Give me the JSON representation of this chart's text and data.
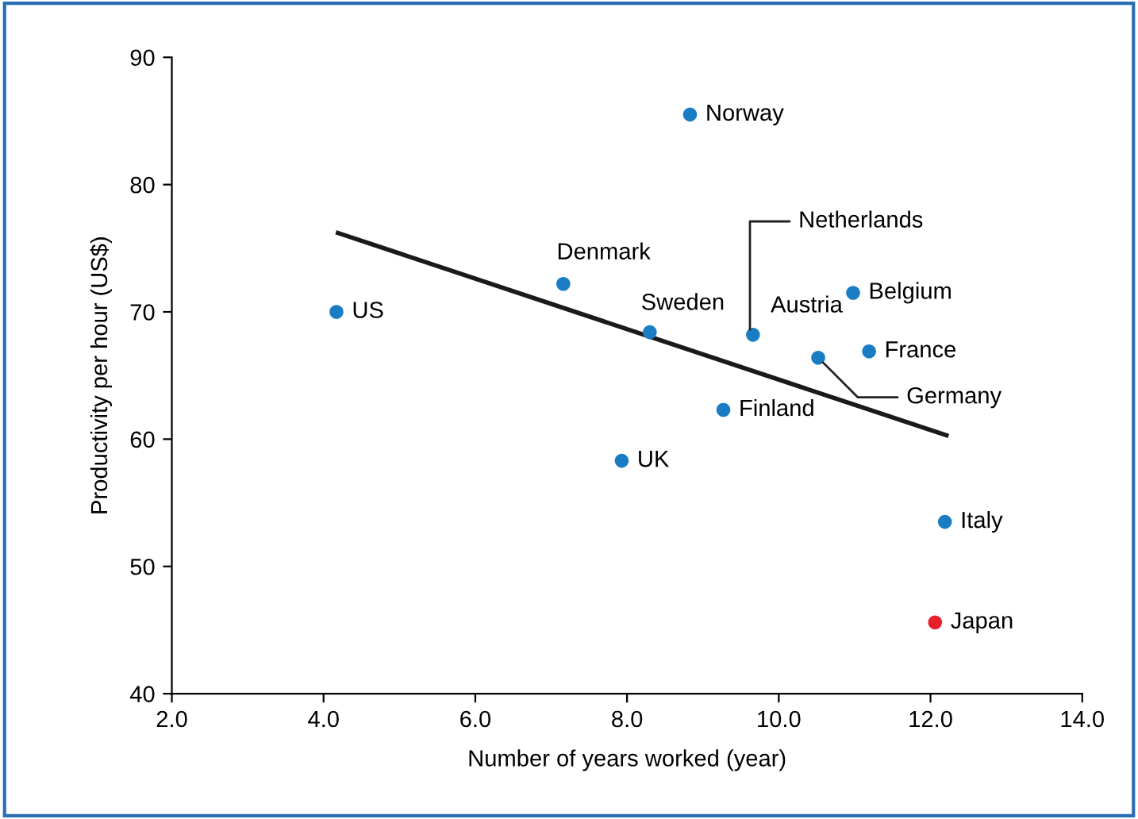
{
  "chart_data": {
    "type": "scatter",
    "xlabel": "Number of years worked (year)",
    "ylabel": "Productivity per hour (US$)",
    "xlim": [
      2,
      14
    ],
    "ylim": [
      40,
      90
    ],
    "xticks": [
      {
        "value": 2,
        "label": "2.0"
      },
      {
        "value": 4,
        "label": "4.0"
      },
      {
        "value": 6,
        "label": "6.0"
      },
      {
        "value": 8,
        "label": "8.0"
      },
      {
        "value": 10,
        "label": "10.0"
      },
      {
        "value": 12,
        "label": "12.0"
      },
      {
        "value": 14,
        "label": "14.0"
      }
    ],
    "yticks": [
      40,
      50,
      60,
      70,
      80,
      90
    ],
    "grid": false,
    "series": [
      {
        "marker": "circle",
        "x": [
          4.17,
          7.16,
          8.3,
          8.83,
          9.62,
          9.66,
          9.27,
          7.93,
          10.52,
          10.98,
          11.19,
          12.19,
          12.06
        ],
        "values": [
          70.0,
          72.2,
          68.4,
          85.5,
          null,
          68.2,
          62.3,
          58.3,
          66.4,
          71.5,
          66.9,
          53.5,
          45.6
        ],
        "colors": [
          "#1a7dc4",
          "#1a7dc4",
          "#1a7dc4",
          "#1a7dc4",
          "#1a7dc4",
          "#1a7dc4",
          "#1a7dc4",
          "#1a7dc4",
          "#1a7dc4",
          "#1a7dc4",
          "#1a7dc4",
          "#1a7dc4",
          "#e8202a"
        ]
      },
      {
        "type": "line",
        "color": "#1a1a1a",
        "x": [
          4.19,
          12.21
        ],
        "values": [
          76.2,
          60.3
        ]
      }
    ],
    "annotations": [
      {
        "text": "US",
        "x": 4.17,
        "y": 70.0
      },
      {
        "text": "Denmark",
        "x": 7.16,
        "y": 72.2
      },
      {
        "text": "Sweden",
        "x": 8.3,
        "y": 68.4
      },
      {
        "text": "Norway",
        "x": 8.83,
        "y": 85.5
      },
      {
        "text": "Netherlands",
        "x": 9.62,
        "y": 68.1
      },
      {
        "text": "Austria",
        "x": 9.66,
        "y": 68.2
      },
      {
        "text": "Finland",
        "x": 9.27,
        "y": 62.3
      },
      {
        "text": "UK",
        "x": 7.93,
        "y": 58.3
      },
      {
        "text": "Germany",
        "x": 10.52,
        "y": 66.4
      },
      {
        "text": "Belgium",
        "x": 10.98,
        "y": 71.5
      },
      {
        "text": "France",
        "x": 11.19,
        "y": 66.9
      },
      {
        "text": "Italy",
        "x": 12.19,
        "y": 53.5
      },
      {
        "text": "Japan",
        "x": 12.06,
        "y": 45.6
      }
    ]
  }
}
